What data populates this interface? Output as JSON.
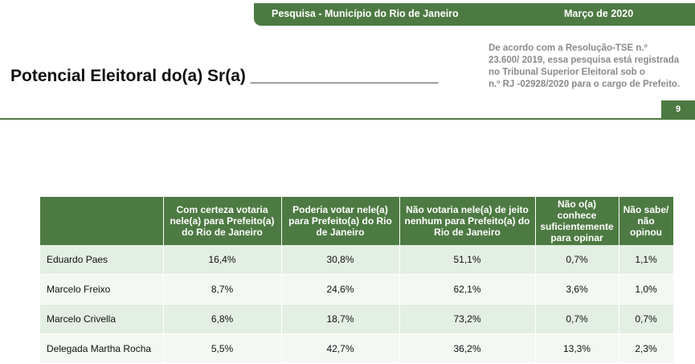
{
  "header": {
    "survey_label": "Pesquisa - Município do Rio de Janeiro",
    "date_label": "Março de 2020"
  },
  "title": "Potencial Eleitoral do(a) Sr(a) ____________________",
  "legal_note": {
    "lines": [
      "De acordo com a Resolução-TSE n.º",
      "23.600/ 2019, essa pesquisa está registrada",
      "no Tribunal Superior Eleitoral sob o",
      "n.º RJ -02928/2020 para o cargo de Prefeito."
    ]
  },
  "page_number": "9",
  "colors": {
    "accent": "#4d7a42",
    "row_odd": "#e3efe3",
    "row_even": "#f3f8f3"
  },
  "table": {
    "columns": [
      "",
      "Com certeza votaria nele(a) para Prefeito(a) do Rio de Janeiro",
      "Poderia votar nele(a) para Prefeito(a) do Rio de Janeiro",
      "Não votaria nele(a) de jeito nenhum para Prefeito(a) do Rio de Janeiro",
      "Não o(a) conhece suficientemente para opinar",
      "Não sabe/ não opinou"
    ],
    "rows": [
      {
        "name": "Eduardo Paes",
        "values": [
          "16,4%",
          "30,8%",
          "51,1%",
          "0,7%",
          "1,1%"
        ]
      },
      {
        "name": "Marcelo Freixo",
        "values": [
          "8,7%",
          "24,6%",
          "62,1%",
          "3,6%",
          "1,0%"
        ]
      },
      {
        "name": "Marcelo Crivella",
        "values": [
          "6,8%",
          "18,7%",
          "73,2%",
          "0,7%",
          "0,7%"
        ]
      },
      {
        "name": "Delegada Martha Rocha",
        "values": [
          "5,5%",
          "42,7%",
          "36,2%",
          "13,3%",
          "2,3%"
        ]
      }
    ]
  }
}
